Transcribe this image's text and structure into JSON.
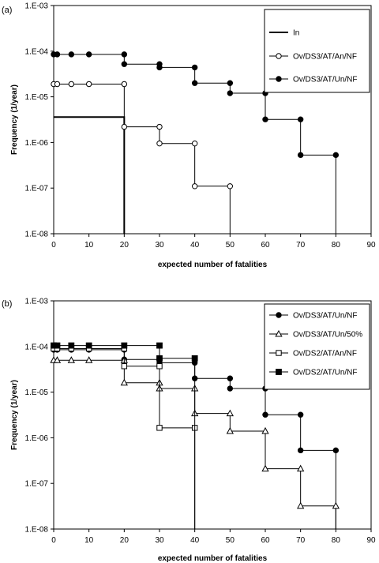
{
  "chart_data": [
    {
      "type": "line",
      "panel_label": "(a)",
      "xlabel": "expected number of fatalities",
      "ylabel": "Frequency (1/year)",
      "xlim": [
        0,
        90
      ],
      "ylim": [
        1e-08,
        0.001
      ],
      "yscale": "log",
      "x_ticks": [
        "0",
        "10",
        "20",
        "30",
        "40",
        "50",
        "60",
        "70",
        "80",
        "90"
      ],
      "y_ticks": [
        "1.E-03",
        "1.E-04",
        "1.E-05",
        "1.E-06",
        "1.E-07",
        "1.E-08"
      ],
      "grid": false,
      "legend_position": "top-right",
      "step_plot": true,
      "series": [
        {
          "name": "In",
          "marker": "none",
          "line_width": 2,
          "x": [
            0,
            20
          ],
          "y": [
            3.6e-06,
            3.6e-06
          ],
          "drop_to_axis_at": 20
        },
        {
          "name": "Ov/DS3/AT/An/NF",
          "marker": "open-circle",
          "x": [
            0,
            1,
            5,
            10,
            20,
            20,
            30,
            30,
            40,
            40,
            50
          ],
          "y": [
            1.9e-05,
            1.9e-05,
            1.9e-05,
            1.9e-05,
            1.9e-05,
            2.2e-06,
            2.2e-06,
            9.5e-07,
            9.5e-07,
            1.1e-07,
            1.1e-07
          ],
          "drop_to_axis_at": 50
        },
        {
          "name": "Ov/DS3/AT/Un/NF",
          "marker": "filled-circle",
          "x": [
            0,
            1,
            5,
            10,
            20,
            20,
            30,
            30,
            40,
            40,
            50,
            50,
            60,
            60,
            70,
            70,
            80
          ],
          "y": [
            8.5e-05,
            8.5e-05,
            8.5e-05,
            8.5e-05,
            8.5e-05,
            5.2e-05,
            5.2e-05,
            4.4e-05,
            4.4e-05,
            2e-05,
            2e-05,
            1.2e-05,
            1.2e-05,
            3.2e-06,
            3.2e-06,
            5.3e-07,
            5.3e-07
          ],
          "drop_to_axis_at": 80
        }
      ]
    },
    {
      "type": "line",
      "panel_label": "(b)",
      "xlabel": "expected number of fatalities",
      "ylabel": "Frequency (1/year)",
      "xlim": [
        0,
        90
      ],
      "ylim": [
        1e-08,
        0.001
      ],
      "yscale": "log",
      "x_ticks": [
        "0",
        "10",
        "20",
        "30",
        "40",
        "50",
        "60",
        "70",
        "80",
        "90"
      ],
      "y_ticks": [
        "1.E-03",
        "1.E-04",
        "1.E-05",
        "1.E-06",
        "1.E-07",
        "1.E-08"
      ],
      "grid": false,
      "legend_position": "top-right",
      "step_plot": true,
      "series": [
        {
          "name": "Ov/DS3/AT/Un/NF",
          "marker": "filled-circle",
          "x": [
            0,
            1,
            5,
            10,
            20,
            20,
            30,
            30,
            40,
            40,
            50,
            50,
            60,
            60,
            70,
            70,
            80
          ],
          "y": [
            8.5e-05,
            8.5e-05,
            8.5e-05,
            8.5e-05,
            8.5e-05,
            5.2e-05,
            5.2e-05,
            4.4e-05,
            4.4e-05,
            2e-05,
            2e-05,
            1.2e-05,
            1.2e-05,
            3.2e-06,
            3.2e-06,
            5.3e-07,
            5.3e-07
          ],
          "drop_to_axis_at": 80
        },
        {
          "name": "Ov/DS3/AT/Un/50%",
          "marker": "open-triangle",
          "x": [
            0,
            1,
            5,
            10,
            20,
            20,
            30,
            30,
            40,
            40,
            50,
            50,
            60,
            60,
            70,
            70,
            80
          ],
          "y": [
            5e-05,
            5e-05,
            5e-05,
            5e-05,
            5e-05,
            1.6e-05,
            1.6e-05,
            1.2e-05,
            1.2e-05,
            3.4e-06,
            3.4e-06,
            1.4e-06,
            1.4e-06,
            2.1e-07,
            2.1e-07,
            3.2e-08,
            3.2e-08
          ],
          "drop_to_axis_at": 80
        },
        {
          "name": "Ov/DS2/AT/An/NF",
          "marker": "open-square",
          "x": [
            0,
            1,
            5,
            10,
            20,
            20,
            30,
            30,
            40
          ],
          "y": [
            9e-05,
            9e-05,
            9e-05,
            9e-05,
            9e-05,
            3.7e-05,
            3.7e-05,
            1.65e-06,
            1.65e-06
          ],
          "drop_to_axis_at": 40
        },
        {
          "name": "Ov/DS2/AT/Un/NF",
          "marker": "filled-square",
          "x": [
            0,
            1,
            5,
            10,
            20,
            30,
            30,
            40
          ],
          "y": [
            0.000105,
            0.000105,
            0.000105,
            0.000105,
            0.000105,
            0.000105,
            5.5e-05,
            5.5e-05
          ],
          "drop_to_axis_at": 40
        }
      ]
    }
  ]
}
